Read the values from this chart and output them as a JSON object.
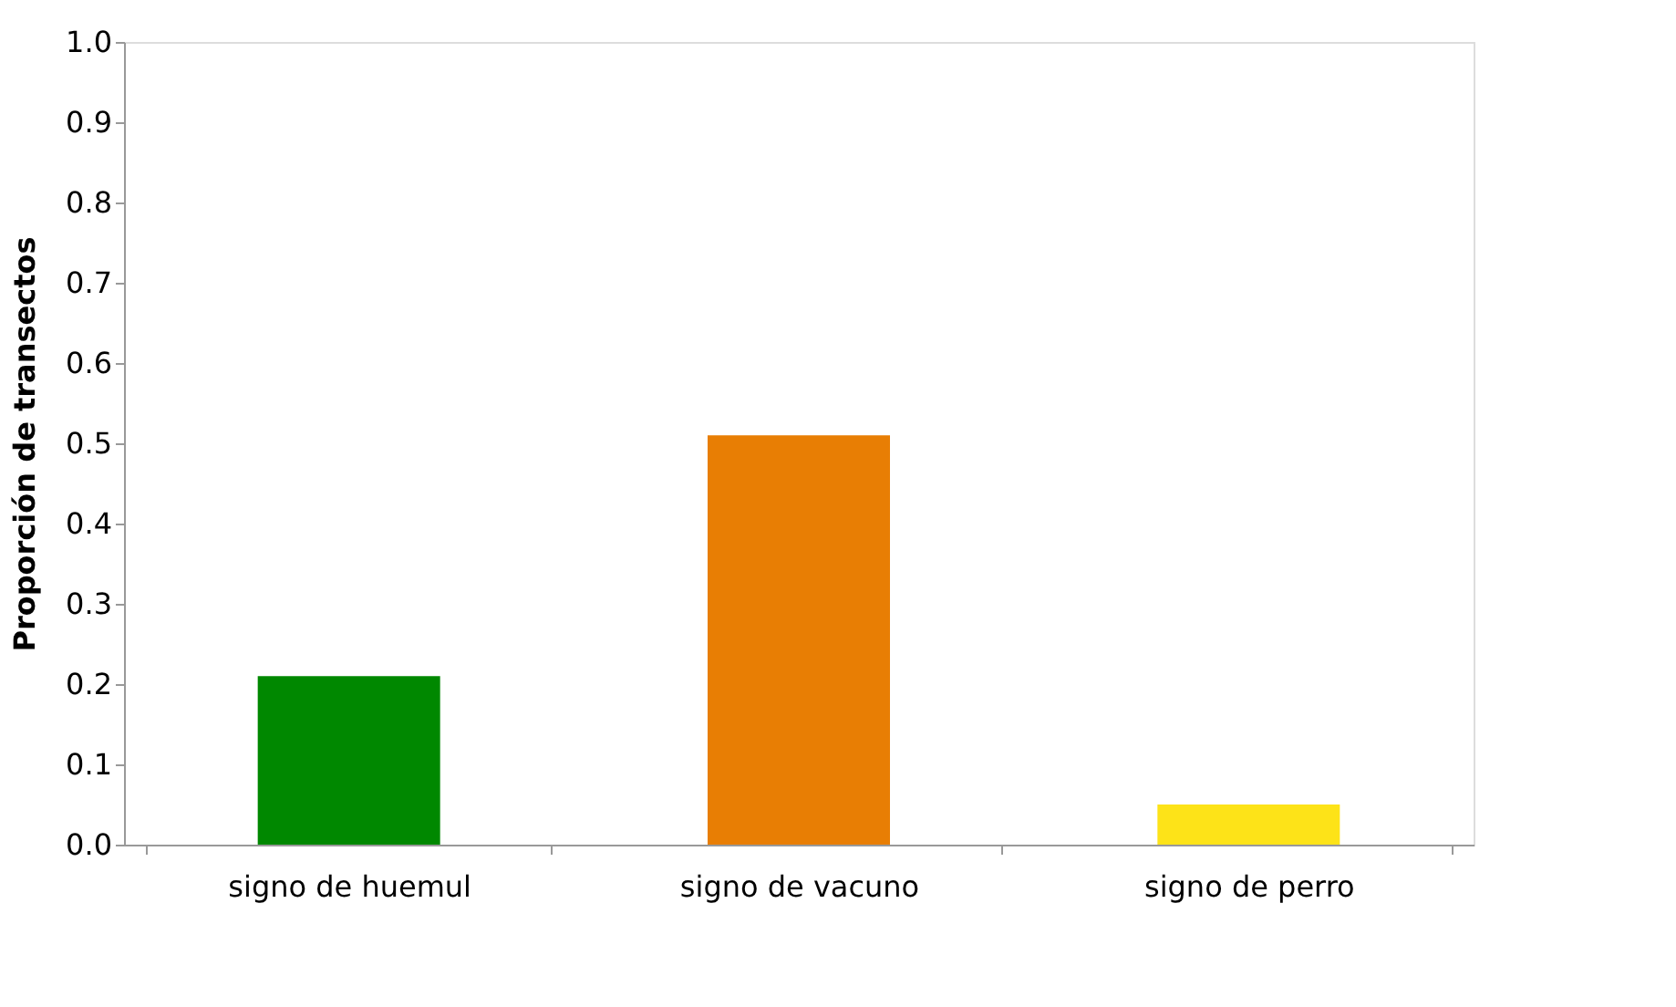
{
  "chart_data": {
    "type": "bar",
    "ylabel": "Proporción de transectos",
    "categories": [
      "signo de huemul",
      "signo de vacuno",
      "signo de perro"
    ],
    "values": [
      0.21,
      0.51,
      0.05
    ],
    "colors": [
      "#008800",
      "#e87e04",
      "#fde318"
    ],
    "ylim": [
      0,
      1.0
    ],
    "yticks": [
      {
        "value": 0,
        "label": "0.0"
      },
      0.1,
      0.2,
      0.3,
      0.4,
      0.5,
      0.6,
      0.7,
      0.8,
      0.9,
      {
        "value": 1.0,
        "label": "1.0"
      }
    ],
    "grid": false,
    "legend": false
  }
}
